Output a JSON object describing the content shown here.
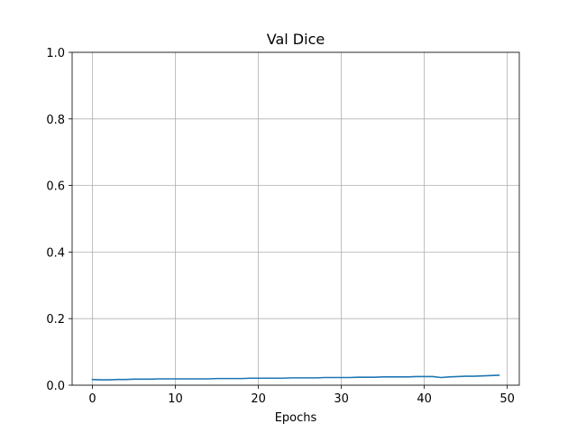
{
  "chart_data": {
    "type": "line",
    "title": "Val Dice",
    "xlabel": "Epochs",
    "ylabel": "",
    "xlim": [
      -2.45,
      51.45
    ],
    "ylim": [
      0,
      1
    ],
    "x_ticks": [
      0,
      10,
      20,
      30,
      40,
      50
    ],
    "x_tick_labels": [
      "0",
      "10",
      "20",
      "30",
      "40",
      "50"
    ],
    "y_ticks": [
      0,
      0.2,
      0.4,
      0.6,
      0.8,
      1.0
    ],
    "y_tick_labels": [
      "0.0",
      "0.2",
      "0.4",
      "0.6",
      "0.8",
      "1.0"
    ],
    "grid": true,
    "series": [
      {
        "color": "#1f77b4",
        "x": [
          0,
          1,
          2,
          3,
          4,
          5,
          6,
          7,
          8,
          9,
          10,
          11,
          12,
          13,
          14,
          15,
          16,
          17,
          18,
          19,
          20,
          21,
          22,
          23,
          24,
          25,
          26,
          27,
          28,
          29,
          30,
          31,
          32,
          33,
          34,
          35,
          36,
          37,
          38,
          39,
          40,
          41,
          42,
          43,
          44,
          45,
          46,
          47,
          48,
          49
        ],
        "y": [
          0.017,
          0.016,
          0.016,
          0.017,
          0.017,
          0.018,
          0.018,
          0.018,
          0.019,
          0.019,
          0.019,
          0.019,
          0.019,
          0.019,
          0.019,
          0.02,
          0.02,
          0.02,
          0.02,
          0.021,
          0.021,
          0.021,
          0.021,
          0.021,
          0.022,
          0.022,
          0.022,
          0.022,
          0.023,
          0.023,
          0.023,
          0.023,
          0.024,
          0.024,
          0.024,
          0.025,
          0.025,
          0.025,
          0.025,
          0.026,
          0.026,
          0.026,
          0.023,
          0.025,
          0.026,
          0.027,
          0.027,
          0.028,
          0.029,
          0.03
        ]
      }
    ]
  }
}
